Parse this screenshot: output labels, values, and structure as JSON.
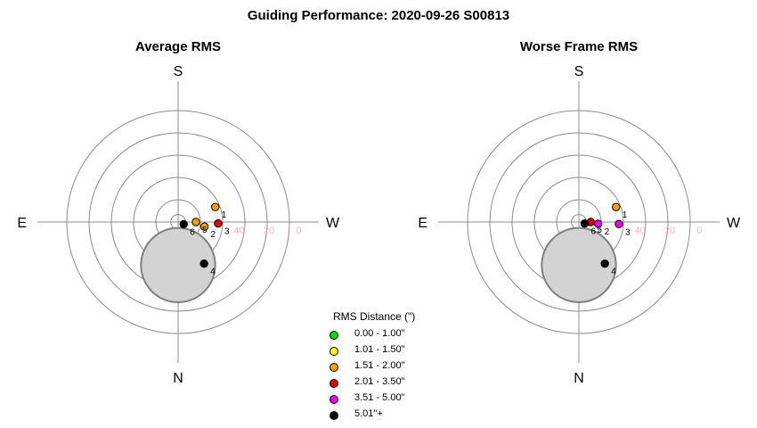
{
  "title": "Guiding Performance: 2020-09-26 S00813",
  "legend": {
    "title": "RMS Distance (\")",
    "items": [
      {
        "label": "0.00 - 1.00\"",
        "color": "#00dd00"
      },
      {
        "label": "1.01 - 1.50\"",
        "color": "#ffff00"
      },
      {
        "label": "1.51 - 2.00\"",
        "color": "#f5a000"
      },
      {
        "label": "2.01 - 3.50\"",
        "color": "#e60000"
      },
      {
        "label": "3.51 - 5.00\"",
        "color": "#ee00ee"
      },
      {
        "label": "5.01\"+",
        "color": "#000000"
      }
    ]
  },
  "chart_data": [
    {
      "type": "scatter",
      "projection": "polar",
      "title": "Average RMS",
      "direction_labels": {
        "top": "S",
        "bottom": "N",
        "left": "E",
        "right": "W"
      },
      "radial_range": [
        0,
        90
      ],
      "radial_ticks": [
        10,
        20,
        30,
        40,
        60,
        80
      ],
      "radial_tick_labels": [
        "40",
        "20",
        "0"
      ],
      "rings": [
        5,
        15,
        30,
        45,
        60,
        75
      ],
      "shaded_region": {
        "azimuth_deg": 0,
        "center_r": 29,
        "radius": 25,
        "color": "#d3d3d3"
      },
      "points": [
        {
          "label": "1",
          "azimuth_deg": 248,
          "r": 27,
          "category": "1.51 - 2.00\""
        },
        {
          "label": "2",
          "azimuth_deg": 280,
          "r": 18,
          "category": "1.51 - 2.00\""
        },
        {
          "label": "3",
          "azimuth_deg": 272,
          "r": 27,
          "category": "2.01 - 3.50\""
        },
        {
          "label": "4",
          "azimuth_deg": 328,
          "r": 33,
          "category": "5.01\"+"
        },
        {
          "label": "5",
          "azimuth_deg": 270,
          "r": 12,
          "category": "1.51 - 2.00\""
        },
        {
          "label": "6",
          "azimuth_deg": 291,
          "r": 4,
          "category": "5.01\"+"
        }
      ]
    },
    {
      "type": "scatter",
      "projection": "polar",
      "title": "Worse Frame RMS",
      "direction_labels": {
        "top": "S",
        "bottom": "N",
        "left": "E",
        "right": "W"
      },
      "radial_range": [
        0,
        90
      ],
      "radial_ticks": [
        10,
        20,
        30,
        40,
        60,
        80
      ],
      "radial_tick_labels": [
        "40",
        "20",
        "0"
      ],
      "rings": [
        5,
        15,
        30,
        45,
        60,
        75
      ],
      "shaded_region": {
        "azimuth_deg": 0,
        "center_r": 29,
        "radius": 25,
        "color": "#d3d3d3"
      },
      "points": [
        {
          "label": "1",
          "azimuth_deg": 248,
          "r": 27,
          "category": "1.51 - 2.00\""
        },
        {
          "label": "2",
          "azimuth_deg": 275,
          "r": 13,
          "category": "3.51 - 5.00\""
        },
        {
          "label": "3",
          "azimuth_deg": 273,
          "r": 27,
          "category": "3.51 - 5.00\""
        },
        {
          "label": "4",
          "azimuth_deg": 328,
          "r": 33,
          "category": "5.01\"+"
        },
        {
          "label": "5",
          "azimuth_deg": 270,
          "r": 8,
          "category": "2.01 - 3.50\""
        },
        {
          "label": "6",
          "azimuth_deg": 285,
          "r": 4,
          "category": "5.01\"+"
        }
      ]
    }
  ]
}
